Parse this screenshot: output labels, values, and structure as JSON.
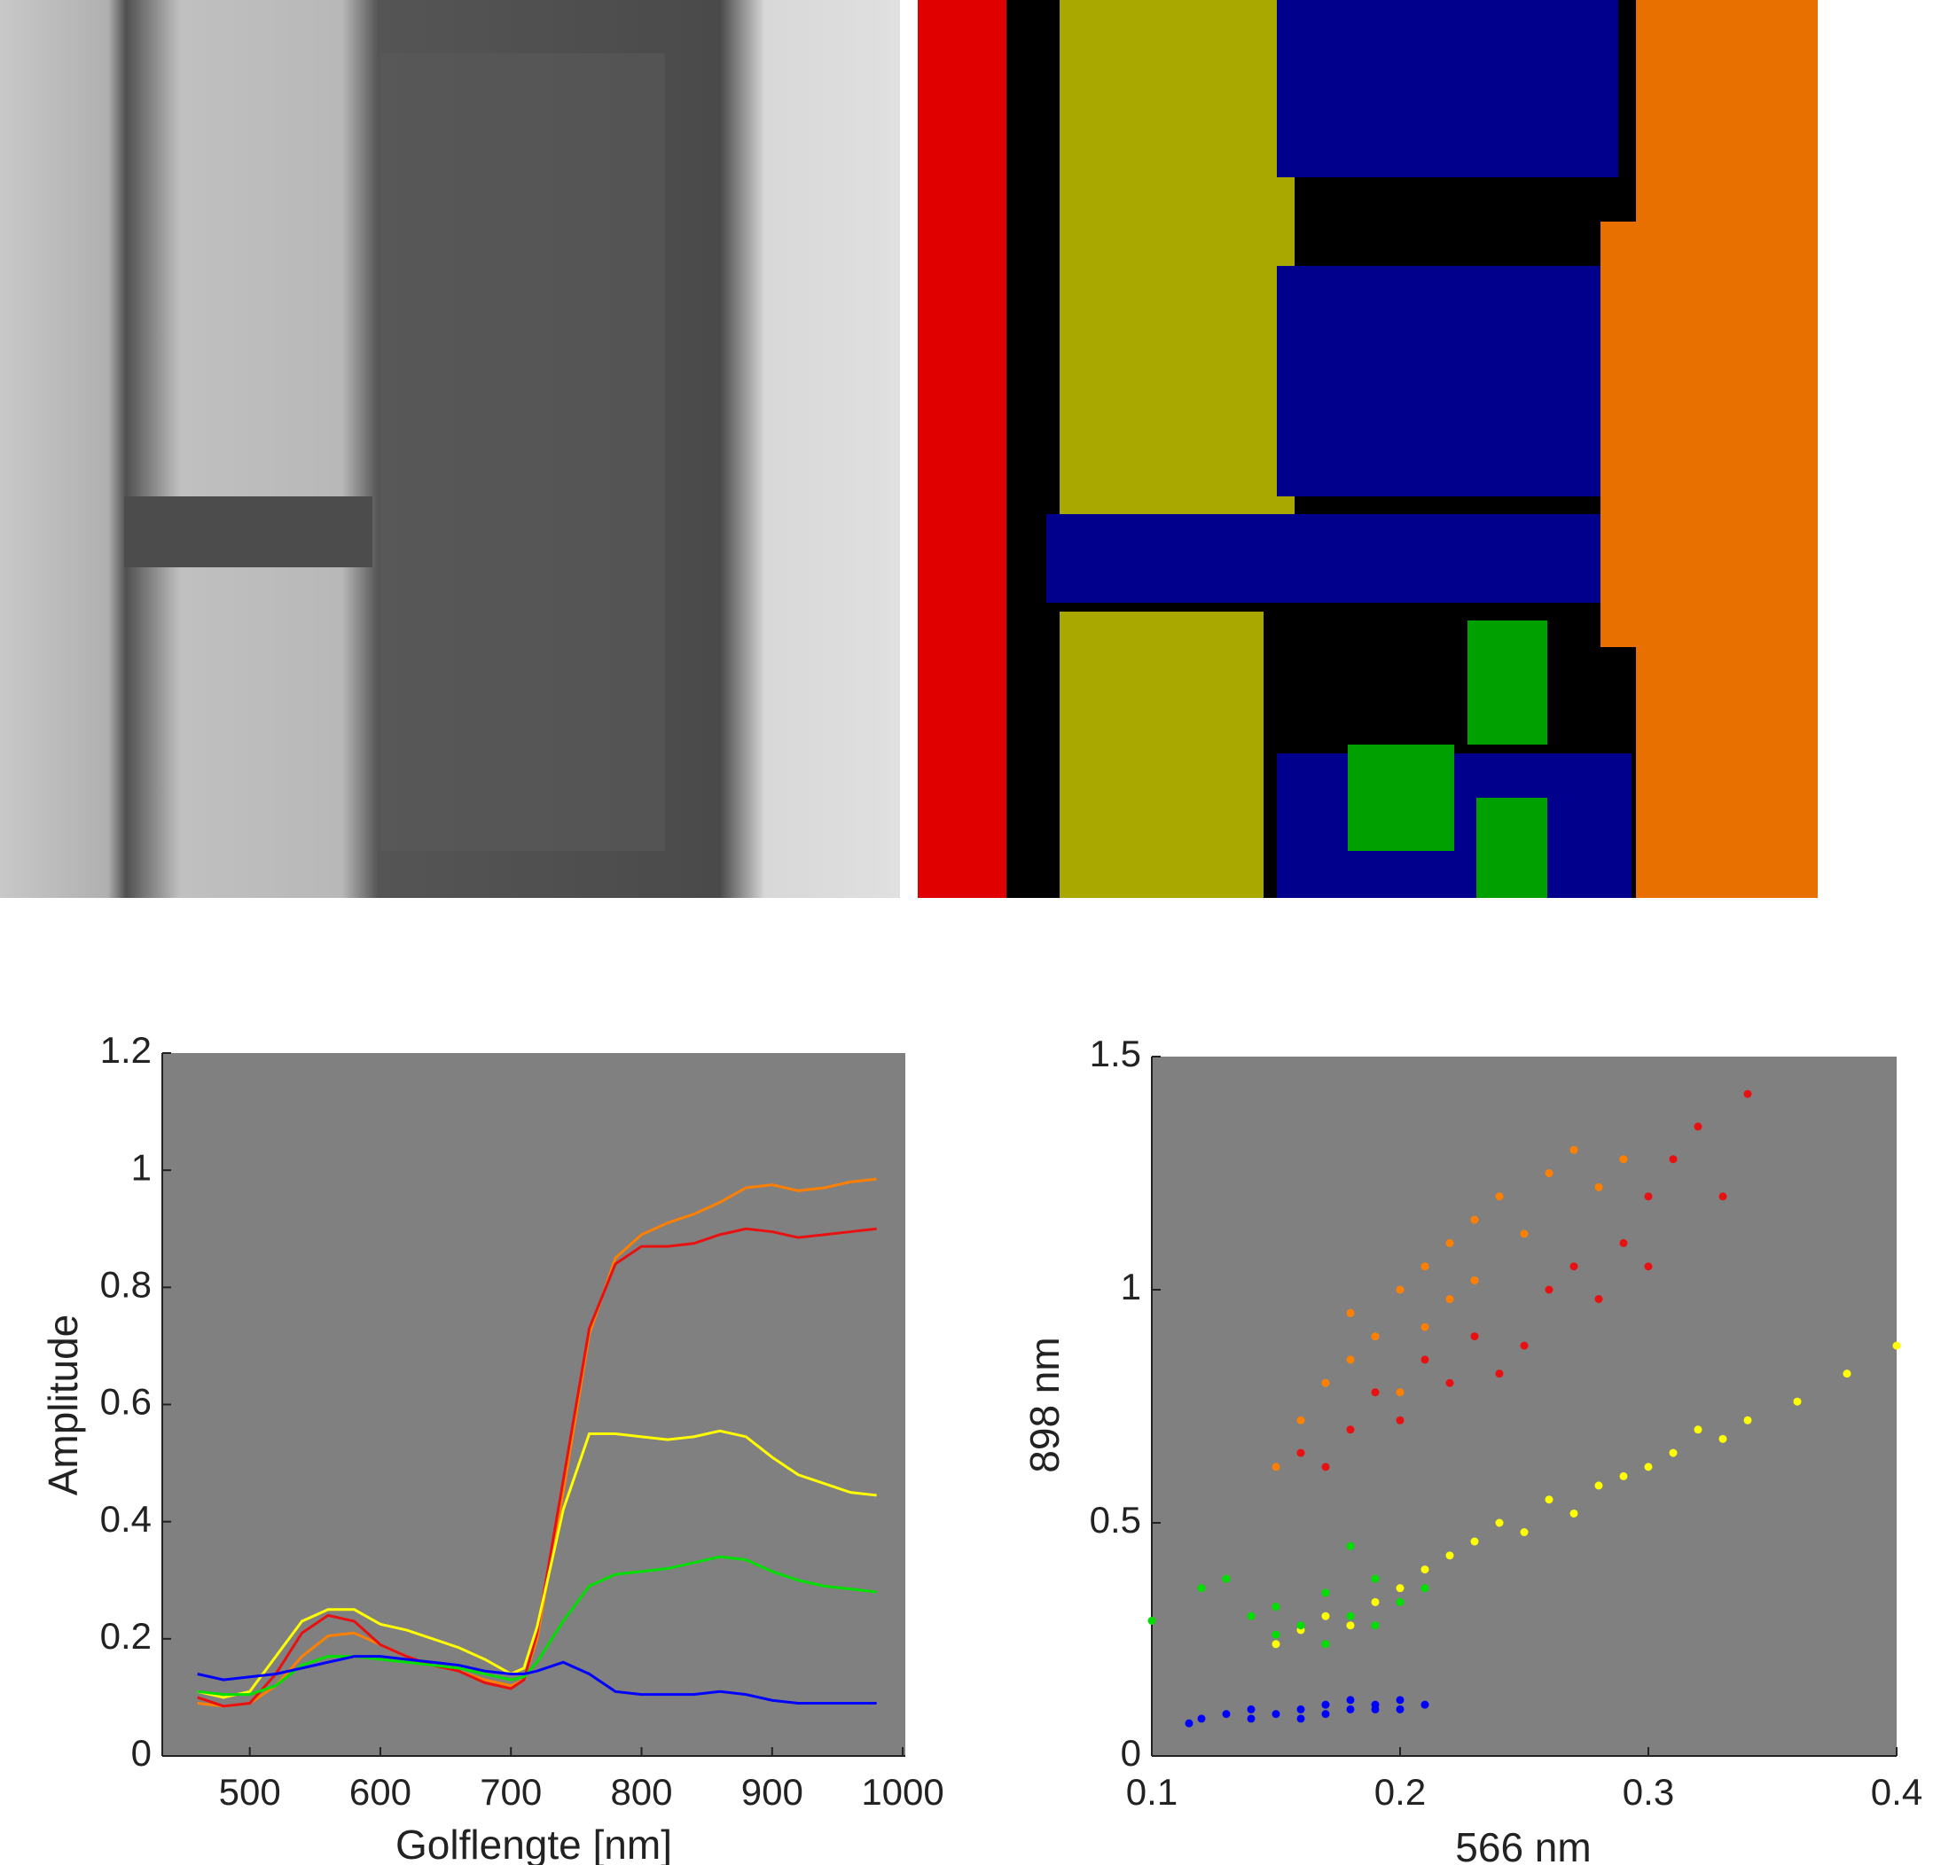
{
  "chart_data": [
    {
      "type": "line",
      "xlabel": "Golflengte [nm]",
      "ylabel": "Amplitude",
      "x": [
        460,
        480,
        500,
        520,
        540,
        560,
        580,
        600,
        620,
        640,
        660,
        680,
        700,
        710,
        720,
        740,
        760,
        780,
        800,
        820,
        840,
        860,
        880,
        900,
        920,
        940,
        960,
        980
      ],
      "series": [
        {
          "color": "#ff8000",
          "values": [
            0.09,
            0.085,
            0.09,
            0.12,
            0.17,
            0.205,
            0.21,
            0.19,
            0.17,
            0.155,
            0.145,
            0.13,
            0.12,
            0.13,
            0.2,
            0.45,
            0.72,
            0.85,
            0.89,
            0.91,
            0.925,
            0.945,
            0.97,
            0.975,
            0.965,
            0.97,
            0.98,
            0.985
          ]
        },
        {
          "color": "#e81010",
          "values": [
            0.1,
            0.085,
            0.09,
            0.14,
            0.21,
            0.24,
            0.23,
            0.19,
            0.17,
            0.155,
            0.145,
            0.125,
            0.115,
            0.13,
            0.21,
            0.47,
            0.73,
            0.84,
            0.87,
            0.87,
            0.875,
            0.89,
            0.9,
            0.895,
            0.885,
            0.89,
            0.895,
            0.9
          ]
        },
        {
          "color": "#ffff00",
          "values": [
            0.11,
            0.1,
            0.11,
            0.17,
            0.23,
            0.25,
            0.25,
            0.225,
            0.215,
            0.2,
            0.185,
            0.165,
            0.14,
            0.15,
            0.22,
            0.42,
            0.55,
            0.55,
            0.545,
            0.54,
            0.545,
            0.555,
            0.545,
            0.51,
            0.48,
            0.465,
            0.45,
            0.445
          ]
        },
        {
          "color": "#00e000",
          "values": [
            0.11,
            0.105,
            0.105,
            0.12,
            0.155,
            0.17,
            0.17,
            0.165,
            0.16,
            0.155,
            0.15,
            0.14,
            0.13,
            0.135,
            0.16,
            0.23,
            0.29,
            0.31,
            0.315,
            0.32,
            0.33,
            0.34,
            0.335,
            0.315,
            0.3,
            0.29,
            0.285,
            0.28
          ]
        },
        {
          "color": "#0000ff",
          "values": [
            0.14,
            0.13,
            0.135,
            0.14,
            0.15,
            0.16,
            0.17,
            0.17,
            0.165,
            0.16,
            0.155,
            0.145,
            0.14,
            0.14,
            0.145,
            0.16,
            0.14,
            0.11,
            0.105,
            0.105,
            0.105,
            0.11,
            0.105,
            0.095,
            0.09,
            0.09,
            0.09,
            0.09
          ]
        }
      ],
      "xlim": [
        433,
        1002
      ],
      "ylim": [
        0,
        1.2
      ],
      "xticks": [
        500,
        600,
        700,
        800,
        900,
        1000
      ],
      "yticks": [
        0,
        0.2,
        0.4,
        0.6,
        0.8,
        1,
        1.2
      ]
    },
    {
      "type": "scatter",
      "xlabel": "566 nm",
      "ylabel": "898 nm",
      "series": [
        {
          "color": "#ff8000",
          "x": [
            0.15,
            0.16,
            0.17,
            0.18,
            0.18,
            0.19,
            0.2,
            0.2,
            0.21,
            0.21,
            0.22,
            0.22,
            0.23,
            0.23,
            0.24,
            0.25,
            0.26,
            0.27,
            0.28,
            0.29
          ],
          "values": [
            0.62,
            0.72,
            0.8,
            0.85,
            0.95,
            0.9,
            1.0,
            0.78,
            1.05,
            0.92,
            1.1,
            0.98,
            1.15,
            1.02,
            1.2,
            1.12,
            1.25,
            1.3,
            1.22,
            1.28
          ]
        },
        {
          "color": "#e81010",
          "x": [
            0.16,
            0.17,
            0.18,
            0.19,
            0.2,
            0.21,
            0.22,
            0.23,
            0.24,
            0.25,
            0.26,
            0.27,
            0.28,
            0.29,
            0.3,
            0.3,
            0.31,
            0.32,
            0.33,
            0.34
          ],
          "values": [
            0.65,
            0.62,
            0.7,
            0.78,
            0.72,
            0.85,
            0.8,
            0.9,
            0.82,
            0.88,
            1.0,
            1.05,
            0.98,
            1.1,
            1.2,
            1.05,
            1.28,
            1.35,
            1.2,
            1.42
          ]
        },
        {
          "color": "#ffff00",
          "x": [
            0.15,
            0.16,
            0.17,
            0.18,
            0.19,
            0.2,
            0.21,
            0.22,
            0.23,
            0.24,
            0.25,
            0.26,
            0.27,
            0.28,
            0.29,
            0.3,
            0.31,
            0.32,
            0.33,
            0.34,
            0.36,
            0.38,
            0.4
          ],
          "values": [
            0.24,
            0.27,
            0.3,
            0.28,
            0.33,
            0.36,
            0.4,
            0.43,
            0.46,
            0.5,
            0.48,
            0.55,
            0.52,
            0.58,
            0.6,
            0.62,
            0.65,
            0.7,
            0.68,
            0.72,
            0.76,
            0.82,
            0.88
          ]
        },
        {
          "color": "#00e000",
          "x": [
            0.1,
            0.12,
            0.13,
            0.14,
            0.15,
            0.15,
            0.16,
            0.17,
            0.17,
            0.18,
            0.18,
            0.19,
            0.19,
            0.2,
            0.21
          ],
          "values": [
            0.29,
            0.36,
            0.38,
            0.3,
            0.32,
            0.26,
            0.28,
            0.35,
            0.24,
            0.45,
            0.3,
            0.38,
            0.28,
            0.33,
            0.36
          ]
        },
        {
          "color": "#0000ff",
          "x": [
            0.115,
            0.12,
            0.13,
            0.14,
            0.14,
            0.15,
            0.16,
            0.16,
            0.17,
            0.17,
            0.18,
            0.18,
            0.19,
            0.19,
            0.2,
            0.2,
            0.21
          ],
          "values": [
            0.07,
            0.08,
            0.09,
            0.1,
            0.08,
            0.09,
            0.1,
            0.08,
            0.11,
            0.09,
            0.1,
            0.12,
            0.1,
            0.11,
            0.12,
            0.1,
            0.11
          ]
        }
      ],
      "xlim": [
        0.1,
        0.4
      ],
      "ylim": [
        0,
        1.5
      ],
      "xticks": [
        0.1,
        0.2,
        0.3,
        0.4
      ],
      "yticks": [
        0,
        0.5,
        1,
        1.5
      ]
    }
  ]
}
